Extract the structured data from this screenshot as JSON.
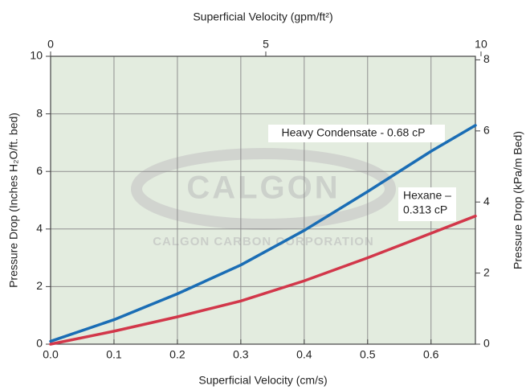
{
  "chart_data": {
    "type": "line",
    "x_label": "Superficial Velocity (cm/s)",
    "x2_label": "Superficial Velocity (gpm/ft²)",
    "y_label": "Pressure Drop (Inches H₂O/ft. bed)",
    "y2_label": "Pressure Drop (kPa/m Bed)",
    "x": [
      0,
      0.1,
      0.2,
      0.3,
      0.4,
      0.5,
      0.6,
      0.67
    ],
    "series": [
      {
        "name": "Heavy Condensate - 0.68 cP",
        "color": "#1a6db5",
        "values": [
          0.1,
          0.85,
          1.75,
          2.75,
          3.95,
          5.3,
          6.7,
          7.6
        ]
      },
      {
        "name": "Hexane – 0.313 cP",
        "color": "#d2374a",
        "values": [
          0,
          0.45,
          0.95,
          1.5,
          2.2,
          3.0,
          3.85,
          4.45
        ]
      }
    ],
    "annotations": [
      {
        "lines": [
          "Heavy Condensate - 0.68 cP"
        ]
      },
      {
        "lines": [
          "Hexane –",
          "0.313 cP"
        ]
      }
    ],
    "watermark": [
      "CALGON",
      "CALGON CARBON CORPORATION"
    ],
    "xlim": [
      0,
      0.67
    ],
    "xticks": [
      {
        "value": 0,
        "label": "0.0"
      },
      0.1,
      0.2,
      0.3,
      0.4,
      0.5,
      0.6
    ],
    "x2lim": [
      0,
      9.87
    ],
    "x2ticks": [
      0,
      5,
      10
    ],
    "ylim": [
      0,
      10
    ],
    "yticks": [
      0,
      2,
      4,
      6,
      8,
      10
    ],
    "y2lim": [
      0,
      8.1
    ],
    "y2ticks": [
      0,
      2,
      4,
      6,
      8
    ],
    "grid": true,
    "background": "#e3ecdf"
  }
}
